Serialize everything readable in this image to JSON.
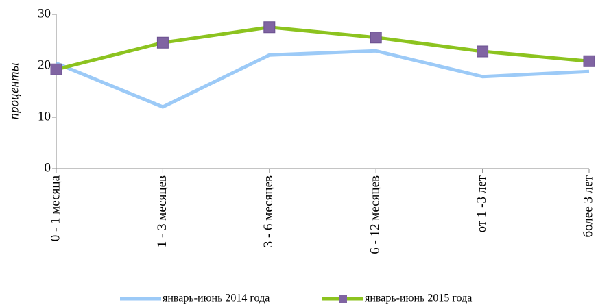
{
  "chart_data": {
    "type": "line",
    "y_label": "проценты",
    "categories": [
      "0 - 1 месяца",
      "1 - 3 месяцев",
      "3 - 6 месяцев",
      "6 - 12 месяцев",
      "от 1 -3 лет",
      "более 3 лет"
    ],
    "series": [
      {
        "name": "январь-июнь 2014 года",
        "color": "#9ccaf7",
        "marker": false,
        "values": [
          20.5,
          12,
          22.1,
          22.9,
          17.9,
          18.9
        ]
      },
      {
        "name": "январь-июнь 2015 года",
        "color": "#8cc31f",
        "marker": true,
        "marker_color": "#8064a2",
        "values": [
          19.3,
          24.5,
          27.5,
          25.5,
          22.8,
          20.9
        ]
      }
    ],
    "ylim": [
      0,
      30
    ],
    "yticks": [
      0,
      10,
      20,
      30
    ]
  }
}
